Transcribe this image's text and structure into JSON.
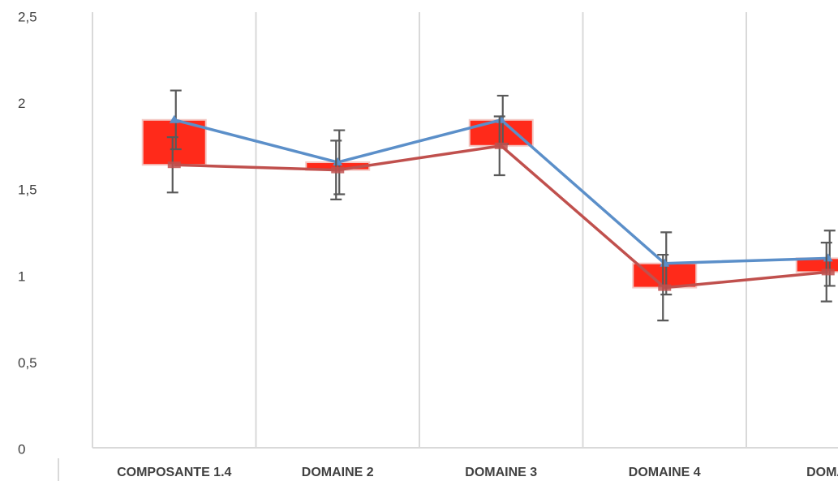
{
  "chart_data": {
    "type": "line",
    "categories": [
      "COMPOSANTE 1.4",
      "DOMAINE 2",
      "DOMAINE 3",
      "DOMAINE 4",
      "DOMAI"
    ],
    "series": [
      {
        "color": "#5b8fc9",
        "values": [
          1.91,
          1.665,
          1.91,
          1.08,
          1.11
        ],
        "errors": [
          0.17,
          0.185,
          0.14,
          0.18,
          0.16
        ]
      },
      {
        "color": "#c0504d",
        "values": [
          1.65,
          1.62,
          1.76,
          0.94,
          1.03
        ],
        "errors": [
          0.16,
          0.17,
          0.17,
          0.19,
          0.17
        ]
      }
    ],
    "up_down_bar_color": "#ff2a1a",
    "ylim": [
      0,
      2.5
    ],
    "yticks": [
      0,
      {
        "value": 0.5,
        "label": "0,5"
      },
      1,
      {
        "value": 1.5,
        "label": "1,5"
      },
      2,
      {
        "value": 2.5,
        "label": "2,5"
      }
    ],
    "grid": true
  }
}
